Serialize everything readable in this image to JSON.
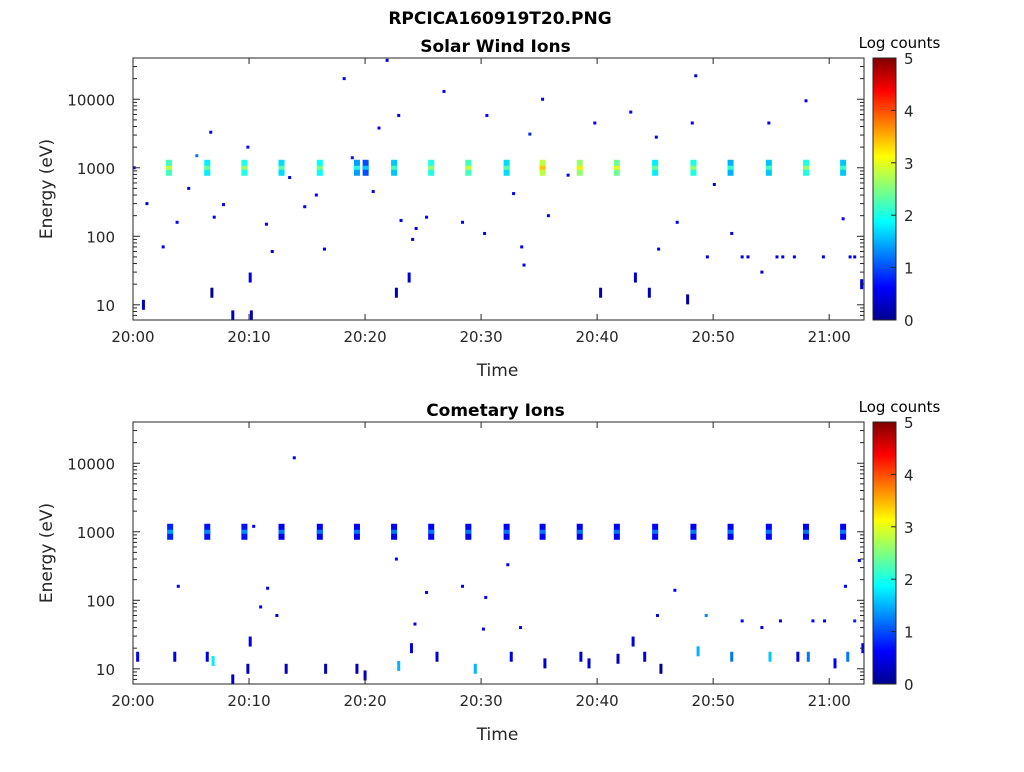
{
  "figure_title": "RPCICA160919T20.PNG",
  "chart_data": [
    {
      "type": "heatmap",
      "title": "Solar Wind Ions",
      "xlabel": "Time",
      "ylabel": "Energy (eV)",
      "y_scale": "log",
      "x_range": [
        "20:00",
        "21:03"
      ],
      "ylim": [
        6,
        40000
      ],
      "x_ticks": [
        "20:00",
        "20:10",
        "20:20",
        "20:30",
        "20:40",
        "20:50",
        "21:00"
      ],
      "y_ticks": [
        "10",
        "100",
        "1000",
        "10000"
      ],
      "colorbar": {
        "label": "Log counts",
        "min": 0,
        "max": 5,
        "ticks": [
          "0",
          "1",
          "2",
          "3",
          "4",
          "5"
        ],
        "colormap": "jet"
      },
      "grid": false,
      "bands": [
        {
          "t": 20.05,
          "e": 1000,
          "c": 1.0
        },
        {
          "t": 3.1,
          "e": 1000,
          "c": 2.2
        },
        {
          "t": 6.4,
          "e": 1000,
          "c": 1.8
        },
        {
          "t": 9.6,
          "e": 1000,
          "c": 2.0
        },
        {
          "t": 12.8,
          "e": 1000,
          "c": 1.7
        },
        {
          "t": 16.1,
          "e": 1000,
          "c": 1.9
        },
        {
          "t": 19.3,
          "e": 1000,
          "c": 1.4
        },
        {
          "t": 22.5,
          "e": 1000,
          "c": 1.6
        },
        {
          "t": 25.7,
          "e": 1000,
          "c": 2.0
        },
        {
          "t": 28.9,
          "e": 1000,
          "c": 2.2
        },
        {
          "t": 32.2,
          "e": 1000,
          "c": 1.7
        },
        {
          "t": 35.3,
          "e": 1000,
          "c": 2.8
        },
        {
          "t": 38.5,
          "e": 1000,
          "c": 2.6
        },
        {
          "t": 41.7,
          "e": 1000,
          "c": 2.4
        },
        {
          "t": 45.0,
          "e": 1000,
          "c": 1.8
        },
        {
          "t": 48.3,
          "e": 1000,
          "c": 2.0
        },
        {
          "t": 51.5,
          "e": 1000,
          "c": 1.5
        },
        {
          "t": 54.8,
          "e": 1000,
          "c": 1.6
        },
        {
          "t": 58.0,
          "e": 1000,
          "c": 2.0
        },
        {
          "t": 61.2,
          "e": 1000,
          "c": 1.6
        }
      ],
      "points": [
        {
          "t": 0.1,
          "e": 1000,
          "c": 0.5
        },
        {
          "t": 0.9,
          "e": 10,
          "c": 0.3
        },
        {
          "t": 1.2,
          "e": 300,
          "c": 0.5
        },
        {
          "t": 2.6,
          "e": 70,
          "c": 0.5
        },
        {
          "t": 3.8,
          "e": 160,
          "c": 0.6
        },
        {
          "t": 4.8,
          "e": 500,
          "c": 0.5
        },
        {
          "t": 5.5,
          "e": 1500,
          "c": 1.2
        },
        {
          "t": 6.7,
          "e": 3300,
          "c": 0.6
        },
        {
          "t": 6.8,
          "e": 15,
          "c": 0.1
        },
        {
          "t": 7.0,
          "e": 190,
          "c": 0.6
        },
        {
          "t": 7.8,
          "e": 290,
          "c": 0.6
        },
        {
          "t": 8.6,
          "e": 7,
          "c": 0.3
        },
        {
          "t": 9.9,
          "e": 2000,
          "c": 0.7
        },
        {
          "t": 10.1,
          "e": 25,
          "c": 0.5
        },
        {
          "t": 10.2,
          "e": 7,
          "c": 0.3
        },
        {
          "t": 11.5,
          "e": 150,
          "c": 0.6
        },
        {
          "t": 12.0,
          "e": 60,
          "c": 0.5
        },
        {
          "t": 13.5,
          "e": 720,
          "c": 0.6
        },
        {
          "t": 14.8,
          "e": 270,
          "c": 0.6
        },
        {
          "t": 15.8,
          "e": 400,
          "c": 0.6
        },
        {
          "t": 16.5,
          "e": 65,
          "c": 0.5
        },
        {
          "t": 18.2,
          "e": 20000,
          "c": 0.6
        },
        {
          "t": 18.9,
          "e": 1400,
          "c": 0.7
        },
        {
          "t": 20.7,
          "e": 450,
          "c": 0.6
        },
        {
          "t": 21.2,
          "e": 3800,
          "c": 0.6
        },
        {
          "t": 21.9,
          "e": 37000,
          "c": 0.5
        },
        {
          "t": 22.7,
          "e": 15,
          "c": 0.3
        },
        {
          "t": 22.9,
          "e": 5800,
          "c": 0.6
        },
        {
          "t": 23.1,
          "e": 170,
          "c": 0.6
        },
        {
          "t": 23.8,
          "e": 25,
          "c": 0.4
        },
        {
          "t": 24.1,
          "e": 90,
          "c": 0.5
        },
        {
          "t": 24.4,
          "e": 130,
          "c": 0.6
        },
        {
          "t": 25.3,
          "e": 190,
          "c": 0.6
        },
        {
          "t": 26.8,
          "e": 13000,
          "c": 0.6
        },
        {
          "t": 28.4,
          "e": 160,
          "c": 0.6
        },
        {
          "t": 30.5,
          "e": 5800,
          "c": 0.6
        },
        {
          "t": 30.3,
          "e": 110,
          "c": 0.6
        },
        {
          "t": 32.8,
          "e": 420,
          "c": 0.6
        },
        {
          "t": 33.5,
          "e": 70,
          "c": 0.6
        },
        {
          "t": 33.7,
          "e": 38,
          "c": 0.5
        },
        {
          "t": 34.2,
          "e": 3100,
          "c": 0.8
        },
        {
          "t": 35.3,
          "e": 10000,
          "c": 0.6
        },
        {
          "t": 35.8,
          "e": 200,
          "c": 0.6
        },
        {
          "t": 37.5,
          "e": 780,
          "c": 0.6
        },
        {
          "t": 39.8,
          "e": 4500,
          "c": 0.6
        },
        {
          "t": 40.3,
          "e": 15,
          "c": 0.3
        },
        {
          "t": 42.9,
          "e": 6500,
          "c": 0.6
        },
        {
          "t": 43.3,
          "e": 25,
          "c": 0.4
        },
        {
          "t": 44.5,
          "e": 15,
          "c": 0.3
        },
        {
          "t": 45.1,
          "e": 2800,
          "c": 0.6
        },
        {
          "t": 45.3,
          "e": 65,
          "c": 0.5
        },
        {
          "t": 46.9,
          "e": 160,
          "c": 0.6
        },
        {
          "t": 47.8,
          "e": 12,
          "c": 0.2
        },
        {
          "t": 48.2,
          "e": 4500,
          "c": 0.6
        },
        {
          "t": 48.5,
          "e": 22000,
          "c": 0.5
        },
        {
          "t": 49.5,
          "e": 50,
          "c": 0.5
        },
        {
          "t": 50.1,
          "e": 570,
          "c": 0.6
        },
        {
          "t": 51.6,
          "e": 110,
          "c": 0.6
        },
        {
          "t": 52.5,
          "e": 50,
          "c": 0.5
        },
        {
          "t": 53.0,
          "e": 50,
          "c": 0.5
        },
        {
          "t": 54.2,
          "e": 30,
          "c": 0.5
        },
        {
          "t": 54.8,
          "e": 4500,
          "c": 0.6
        },
        {
          "t": 55.5,
          "e": 50,
          "c": 0.5
        },
        {
          "t": 56.0,
          "e": 50,
          "c": 0.5
        },
        {
          "t": 57.0,
          "e": 50,
          "c": 0.5
        },
        {
          "t": 58.0,
          "e": 9500,
          "c": 0.6
        },
        {
          "t": 59.5,
          "e": 50,
          "c": 0.5
        },
        {
          "t": 61.2,
          "e": 180,
          "c": 0.6
        },
        {
          "t": 61.8,
          "e": 50,
          "c": 0.5
        },
        {
          "t": 62.2,
          "e": 50,
          "c": 0.5
        },
        {
          "t": 62.8,
          "e": 20,
          "c": 0.4
        }
      ]
    },
    {
      "type": "heatmap",
      "title": "Cometary Ions",
      "xlabel": "Time",
      "ylabel": "Energy (eV)",
      "y_scale": "log",
      "x_range": [
        "20:00",
        "21:03"
      ],
      "ylim": [
        6,
        40000
      ],
      "x_ticks": [
        "20:00",
        "20:10",
        "20:20",
        "20:30",
        "20:40",
        "20:50",
        "21:00"
      ],
      "y_ticks": [
        "10",
        "100",
        "1000",
        "10000"
      ],
      "colorbar": {
        "label": "Log counts",
        "min": 0,
        "max": 5,
        "ticks": [
          "0",
          "1",
          "2",
          "3",
          "4",
          "5"
        ],
        "colormap": "jet"
      },
      "grid": false,
      "bands": [
        {
          "t": 3.2,
          "e": 1000,
          "c": 0.8
        },
        {
          "t": 6.4,
          "e": 1000,
          "c": 0.7
        },
        {
          "t": 9.6,
          "e": 1000,
          "c": 0.7
        },
        {
          "t": 12.8,
          "e": 1000,
          "c": 0.6
        },
        {
          "t": 16.1,
          "e": 1000,
          "c": 0.6
        },
        {
          "t": 19.3,
          "e": 1000,
          "c": 0.6
        },
        {
          "t": 22.5,
          "e": 1000,
          "c": 0.6
        },
        {
          "t": 25.7,
          "e": 1000,
          "c": 0.6
        },
        {
          "t": 28.9,
          "e": 1000,
          "c": 0.6
        },
        {
          "t": 32.2,
          "e": 1000,
          "c": 0.6
        },
        {
          "t": 35.3,
          "e": 1000,
          "c": 0.6
        },
        {
          "t": 38.5,
          "e": 1000,
          "c": 0.6
        },
        {
          "t": 41.7,
          "e": 1000,
          "c": 0.6
        },
        {
          "t": 45.0,
          "e": 1000,
          "c": 0.6
        },
        {
          "t": 48.3,
          "e": 1000,
          "c": 0.6
        },
        {
          "t": 51.5,
          "e": 1000,
          "c": 0.6
        },
        {
          "t": 54.8,
          "e": 1000,
          "c": 0.6
        },
        {
          "t": 58.0,
          "e": 1000,
          "c": 0.6
        },
        {
          "t": 61.2,
          "e": 1000,
          "c": 0.6
        }
      ],
      "points": [
        {
          "t": 0.4,
          "e": 15,
          "c": 0.6
        },
        {
          "t": 3.6,
          "e": 15,
          "c": 0.5
        },
        {
          "t": 3.9,
          "e": 160,
          "c": 0.6
        },
        {
          "t": 6.4,
          "e": 15,
          "c": 0.5
        },
        {
          "t": 6.9,
          "e": 13,
          "c": 1.8
        },
        {
          "t": 8.6,
          "e": 7,
          "c": 0.3
        },
        {
          "t": 9.9,
          "e": 10,
          "c": 0.3
        },
        {
          "t": 10.1,
          "e": 25,
          "c": 0.5
        },
        {
          "t": 10.4,
          "e": 1200,
          "c": 0.6
        },
        {
          "t": 11.0,
          "e": 80,
          "c": 0.6
        },
        {
          "t": 11.6,
          "e": 150,
          "c": 0.6
        },
        {
          "t": 12.4,
          "e": 60,
          "c": 0.5
        },
        {
          "t": 13.2,
          "e": 10,
          "c": 0.3
        },
        {
          "t": 13.9,
          "e": 12000,
          "c": 0.5
        },
        {
          "t": 16.6,
          "e": 10,
          "c": 0.3
        },
        {
          "t": 19.3,
          "e": 10,
          "c": 0.3
        },
        {
          "t": 20.0,
          "e": 8,
          "c": 0.3
        },
        {
          "t": 22.9,
          "e": 11,
          "c": 1.5
        },
        {
          "t": 22.7,
          "e": 400,
          "c": 0.6
        },
        {
          "t": 24.0,
          "e": 20,
          "c": 0.5
        },
        {
          "t": 24.3,
          "e": 45,
          "c": 0.5
        },
        {
          "t": 25.3,
          "e": 130,
          "c": 0.6
        },
        {
          "t": 26.2,
          "e": 15,
          "c": 0.4
        },
        {
          "t": 28.4,
          "e": 160,
          "c": 0.6
        },
        {
          "t": 29.5,
          "e": 10,
          "c": 1.5
        },
        {
          "t": 30.4,
          "e": 110,
          "c": 0.6
        },
        {
          "t": 30.2,
          "e": 38,
          "c": 0.5
        },
        {
          "t": 32.3,
          "e": 330,
          "c": 0.6
        },
        {
          "t": 32.6,
          "e": 15,
          "c": 0.5
        },
        {
          "t": 33.4,
          "e": 40,
          "c": 0.6
        },
        {
          "t": 35.5,
          "e": 12,
          "c": 0.4
        },
        {
          "t": 38.6,
          "e": 15,
          "c": 0.4
        },
        {
          "t": 39.3,
          "e": 12,
          "c": 0.4
        },
        {
          "t": 41.8,
          "e": 14,
          "c": 0.3
        },
        {
          "t": 43.1,
          "e": 25,
          "c": 0.5
        },
        {
          "t": 44.1,
          "e": 15,
          "c": 0.4
        },
        {
          "t": 45.2,
          "e": 60,
          "c": 0.6
        },
        {
          "t": 45.5,
          "e": 10,
          "c": 0.1
        },
        {
          "t": 46.7,
          "e": 140,
          "c": 0.6
        },
        {
          "t": 48.7,
          "e": 18,
          "c": 1.5
        },
        {
          "t": 49.4,
          "e": 60,
          "c": 1.3
        },
        {
          "t": 51.6,
          "e": 15,
          "c": 1.2
        },
        {
          "t": 52.5,
          "e": 50,
          "c": 0.6
        },
        {
          "t": 54.2,
          "e": 40,
          "c": 0.6
        },
        {
          "t": 54.9,
          "e": 15,
          "c": 1.6
        },
        {
          "t": 55.8,
          "e": 50,
          "c": 0.5
        },
        {
          "t": 57.3,
          "e": 15,
          "c": 0.5
        },
        {
          "t": 58.2,
          "e": 15,
          "c": 1.2
        },
        {
          "t": 58.6,
          "e": 50,
          "c": 0.6
        },
        {
          "t": 59.6,
          "e": 50,
          "c": 0.6
        },
        {
          "t": 60.5,
          "e": 12,
          "c": 0.6
        },
        {
          "t": 61.4,
          "e": 160,
          "c": 0.6
        },
        {
          "t": 61.6,
          "e": 15,
          "c": 1.2
        },
        {
          "t": 62.2,
          "e": 50,
          "c": 0.8
        },
        {
          "t": 62.6,
          "e": 380,
          "c": 0.6
        },
        {
          "t": 62.9,
          "e": 20,
          "c": 0.6
        }
      ]
    }
  ]
}
